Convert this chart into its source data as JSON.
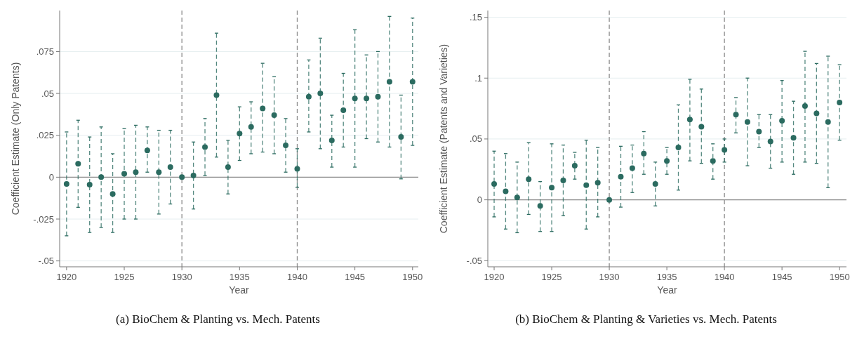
{
  "chart_data": [
    {
      "type": "scatter",
      "xlabel": "Year",
      "ylabel": "Coefficient Estimate (Only Patents)",
      "annotations": [
        "(a) BioChem & Planting vs. Mech. Patents"
      ],
      "xlim": [
        1919.4,
        1950.5
      ],
      "xticks": [
        1920,
        1925,
        1930,
        1935,
        1940,
        1945,
        1950
      ],
      "ylim": [
        -0.0535,
        0.0995
      ],
      "yticks": [
        {
          "value": -0.05,
          "label": "-.05"
        },
        {
          "value": -0.025,
          "label": "-.025"
        },
        0,
        {
          "value": 0.025,
          "label": ".025"
        },
        {
          "value": 0.05,
          "label": ".05"
        },
        {
          "value": 0.075,
          "label": ".075"
        }
      ],
      "grid": "y",
      "marker": "circle",
      "line_style": "dashed",
      "ref_lines": [
        {
          "axis": "y",
          "value": 0,
          "color": "#8a8a8a",
          "line_style": "solid"
        },
        {
          "axis": "x",
          "value": 1930,
          "color": "#8a8a8a",
          "line_style": "dashed"
        },
        {
          "axis": "x",
          "value": 1940,
          "color": "#8a8a8a",
          "line_style": "dashed"
        }
      ],
      "x": [
        1920,
        1921,
        1922,
        1923,
        1924,
        1925,
        1926,
        1927,
        1928,
        1929,
        1930,
        1931,
        1932,
        1933,
        1934,
        1935,
        1936,
        1937,
        1938,
        1939,
        1940,
        1941,
        1942,
        1943,
        1944,
        1945,
        1946,
        1947,
        1948,
        1949,
        1950
      ],
      "series": [
        {
          "color": "#2b6b60",
          "values": [
            -0.004,
            0.008,
            -0.0045,
            0,
            -0.01,
            0.002,
            0.003,
            0.016,
            0.003,
            0.006,
            0,
            0.001,
            0.018,
            0.049,
            0.006,
            0.026,
            0.03,
            0.041,
            0.037,
            0.019,
            0.005,
            0.048,
            0.05,
            0.022,
            0.04,
            0.047,
            0.047,
            0.048,
            0.057,
            0.024,
            0.057
          ],
          "errors": [
            [
              -0.035,
              0.027
            ],
            [
              -0.018,
              0.034
            ],
            [
              -0.033,
              0.024
            ],
            [
              -0.03,
              0.03
            ],
            [
              -0.033,
              0.014
            ],
            [
              -0.025,
              0.029
            ],
            [
              -0.025,
              0.031
            ],
            [
              0.003,
              0.03
            ],
            [
              -0.022,
              0.028
            ],
            [
              -0.016,
              0.028
            ],
            null,
            [
              -0.019,
              0.021
            ],
            [
              0.001,
              0.035
            ],
            [
              0.012,
              0.086
            ],
            [
              -0.01,
              0.022
            ],
            [
              0.01,
              0.042
            ],
            [
              0.014,
              0.045
            ],
            [
              0.015,
              0.068
            ],
            [
              0.014,
              0.06
            ],
            [
              0.003,
              0.035
            ],
            [
              -0.006,
              0.017
            ],
            [
              0.027,
              0.07
            ],
            [
              0.017,
              0.083
            ],
            [
              0.006,
              0.037
            ],
            [
              0.018,
              0.062
            ],
            [
              0.006,
              0.088
            ],
            [
              0.023,
              0.073
            ],
            [
              0.021,
              0.075
            ],
            [
              0.018,
              0.096
            ],
            [
              -0.001,
              0.049
            ],
            [
              0.019,
              0.095
            ]
          ]
        }
      ]
    },
    {
      "type": "scatter",
      "xlabel": "Year",
      "ylabel": "Coefficient Estimate (Patents and Varieties)",
      "annotations": [
        "(b) BioChem & Planting & Varieties vs. Mech. Patents"
      ],
      "xlim": [
        1919.45,
        1950.6
      ],
      "xticks": [
        1920,
        1925,
        1930,
        1935,
        1940,
        1945,
        1950
      ],
      "ylim": [
        -0.055,
        0.1555
      ],
      "yticks": [
        {
          "value": -0.05,
          "label": "-.05"
        },
        0,
        {
          "value": 0.05,
          "label": ".05"
        },
        {
          "value": 0.1,
          "label": ".1"
        },
        {
          "value": 0.15,
          "label": ".15"
        }
      ],
      "grid": "y",
      "marker": "circle",
      "line_style": "dashed",
      "ref_lines": [
        {
          "axis": "y",
          "value": 0,
          "color": "#8a8a8a",
          "line_style": "solid"
        },
        {
          "axis": "x",
          "value": 1930,
          "color": "#8a8a8a",
          "line_style": "dashed"
        },
        {
          "axis": "x",
          "value": 1940,
          "color": "#8a8a8a",
          "line_style": "dashed"
        }
      ],
      "x": [
        1920,
        1921,
        1922,
        1923,
        1924,
        1925,
        1926,
        1927,
        1928,
        1929,
        1930,
        1931,
        1932,
        1933,
        1934,
        1935,
        1936,
        1937,
        1938,
        1939,
        1940,
        1941,
        1942,
        1943,
        1944,
        1945,
        1946,
        1947,
        1948,
        1949,
        1950
      ],
      "series": [
        {
          "color": "#2b6b60",
          "values": [
            0.013,
            0.007,
            0.002,
            0.017,
            -0.005,
            0.01,
            0.016,
            0.028,
            0.012,
            0.014,
            0,
            0.019,
            0.026,
            0.038,
            0.013,
            0.032,
            0.043,
            0.066,
            0.06,
            0.032,
            0.041,
            0.07,
            0.064,
            0.056,
            0.048,
            0.065,
            0.051,
            0.077,
            0.071,
            0.064,
            0.08
          ],
          "errors": [
            [
              -0.014,
              0.04
            ],
            [
              -0.024,
              0.038
            ],
            [
              -0.027,
              0.031
            ],
            [
              -0.012,
              0.047
            ],
            [
              -0.026,
              0.015
            ],
            [
              -0.026,
              0.046
            ],
            [
              -0.013,
              0.045
            ],
            [
              0.017,
              0.039
            ],
            [
              -0.024,
              0.049
            ],
            [
              -0.014,
              0.043
            ],
            null,
            [
              -0.006,
              0.044
            ],
            [
              0.006,
              0.045
            ],
            [
              0.021,
              0.056
            ],
            [
              -0.005,
              0.031
            ],
            [
              0.021,
              0.043
            ],
            [
              0.008,
              0.078
            ],
            [
              0.032,
              0.099
            ],
            [
              0.03,
              0.091
            ],
            [
              0.017,
              0.046
            ],
            [
              0.031,
              0.05
            ],
            [
              0.055,
              0.084
            ],
            [
              0.028,
              0.1
            ],
            [
              0.043,
              0.07
            ],
            [
              0.026,
              0.07
            ],
            [
              0.031,
              0.098
            ],
            [
              0.021,
              0.081
            ],
            [
              0.031,
              0.122
            ],
            [
              0.03,
              0.112
            ],
            [
              0.01,
              0.118
            ],
            [
              0.049,
              0.111
            ]
          ]
        }
      ]
    }
  ]
}
